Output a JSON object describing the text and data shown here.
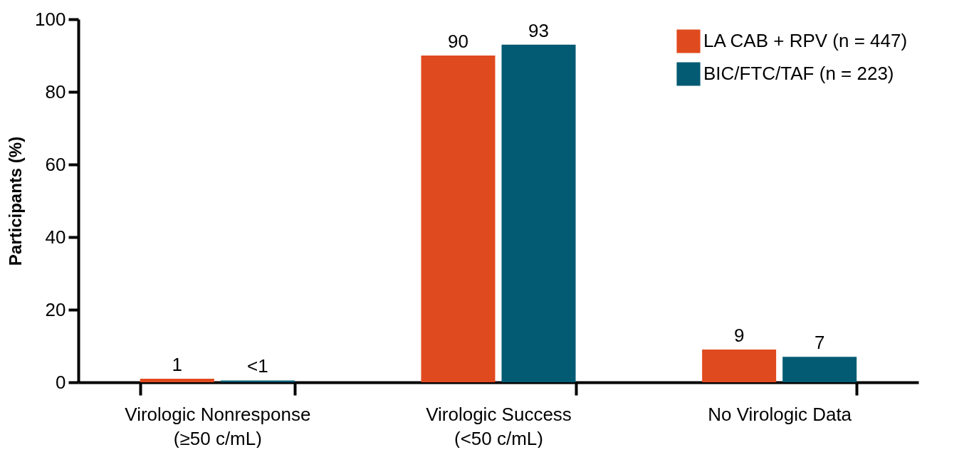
{
  "chart_data": {
    "type": "bar",
    "ylabel": "Participants (%)",
    "categories": [
      "Virologic Nonresponse\n(≥50 c/mL)",
      "Virologic Success\n(<50 c/mL)",
      "No Virologic Data"
    ],
    "series": [
      {
        "name": "LA CAB + RPV (n = 447)",
        "color": "#e04a1f",
        "values": [
          1,
          90,
          9
        ],
        "value_labels": [
          "1",
          "90",
          "9"
        ]
      },
      {
        "name": "BIC/FTC/TAF (n = 223)",
        "color": "#025a73",
        "values": [
          0.5,
          93,
          7
        ],
        "value_labels": [
          "<1",
          "93",
          "7"
        ]
      }
    ],
    "ylim": [
      0,
      100
    ],
    "yticks": [
      0,
      20,
      40,
      60,
      80,
      100
    ],
    "grid": false,
    "legend": "top right"
  }
}
